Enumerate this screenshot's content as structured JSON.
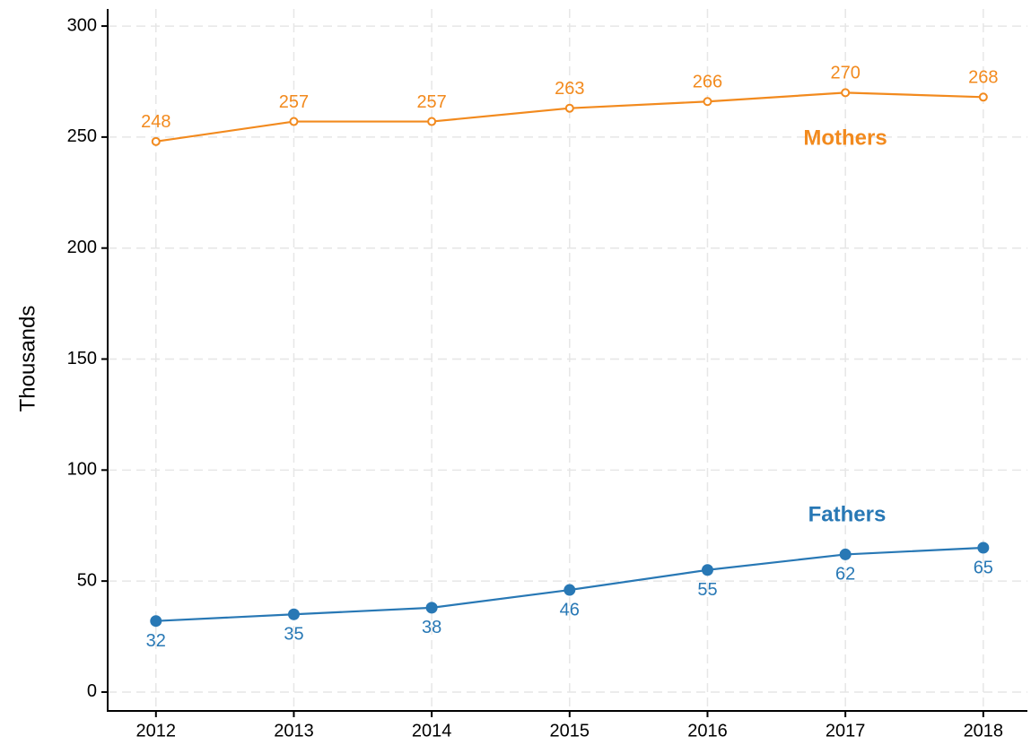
{
  "chart_data": {
    "type": "line",
    "y_label": "Thousands",
    "x": [
      2012,
      2013,
      2014,
      2015,
      2016,
      2017,
      2018
    ],
    "xlim": [
      2011.65,
      2018.32
    ],
    "xticks": [
      2012,
      2013,
      2014,
      2015,
      2016,
      2017,
      2018
    ],
    "ylim": [
      -8.5,
      307.7
    ],
    "yticks": [
      0,
      50,
      100,
      150,
      200,
      250,
      300
    ],
    "grid": true,
    "series": [
      {
        "name": "Mothers",
        "color": "#f28a1e",
        "marker": "open",
        "values": [
          248,
          257,
          257,
          263,
          266,
          270,
          268
        ]
      },
      {
        "name": "Fathers",
        "color": "#2878b5",
        "marker": "filled",
        "values": [
          32,
          35,
          38,
          46,
          55,
          62,
          65
        ]
      }
    ]
  }
}
